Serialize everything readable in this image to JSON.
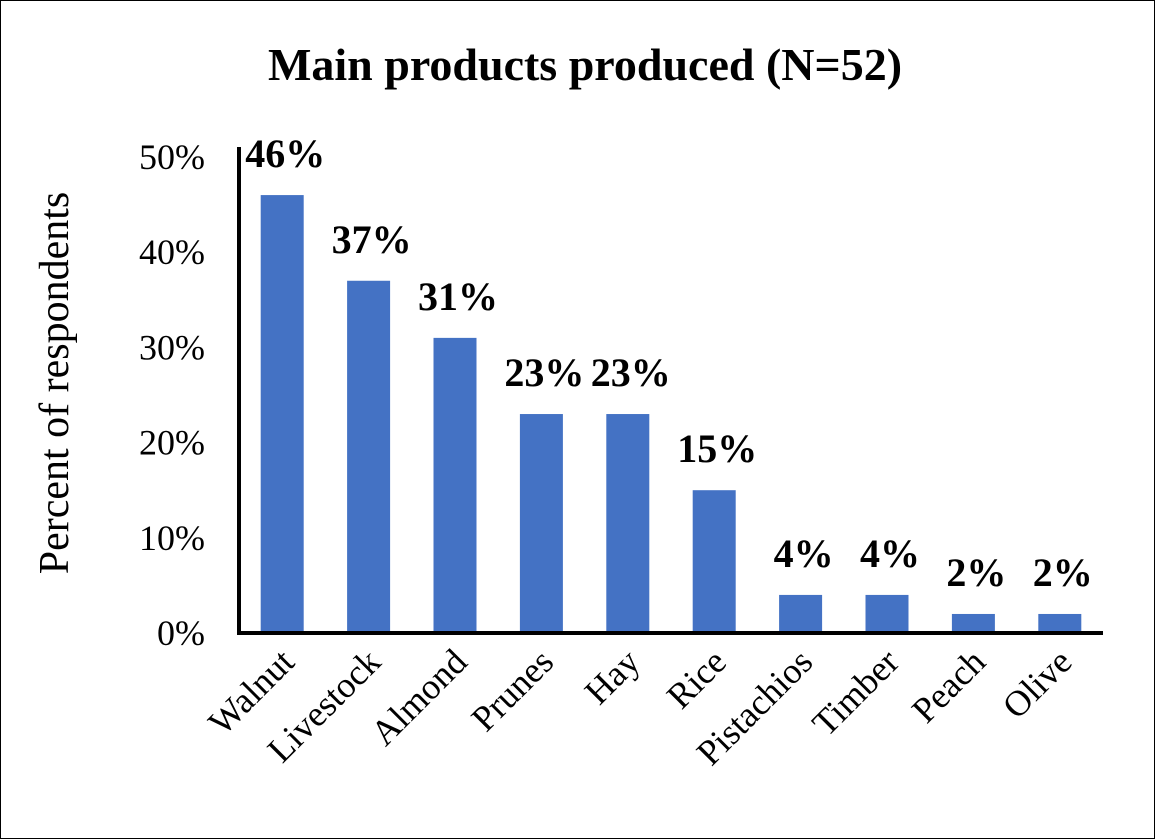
{
  "chart_data": {
    "type": "bar",
    "title": "Main products produced (N=52)",
    "xlabel": "",
    "ylabel": "Percent of respondents",
    "categories": [
      "Walnut",
      "Livestock",
      "Almond",
      "Prunes",
      "Hay",
      "Rice",
      "Pistachios",
      "Timber",
      "Peach",
      "Olive"
    ],
    "values": [
      46,
      37,
      31,
      23,
      23,
      15,
      4,
      4,
      2,
      2
    ],
    "data_labels": [
      "46%",
      "37%",
      "31%",
      "23%",
      "23%",
      "15%",
      "4%",
      "4%",
      "2%",
      "2%"
    ],
    "ylim": [
      0,
      50
    ],
    "yticks": [
      0,
      10,
      20,
      30,
      40,
      50
    ],
    "ytick_labels": [
      "0%",
      "10%",
      "20%",
      "30%",
      "40%",
      "50%"
    ],
    "grid": false,
    "legend": "none",
    "bar_color": "#4472C4"
  }
}
